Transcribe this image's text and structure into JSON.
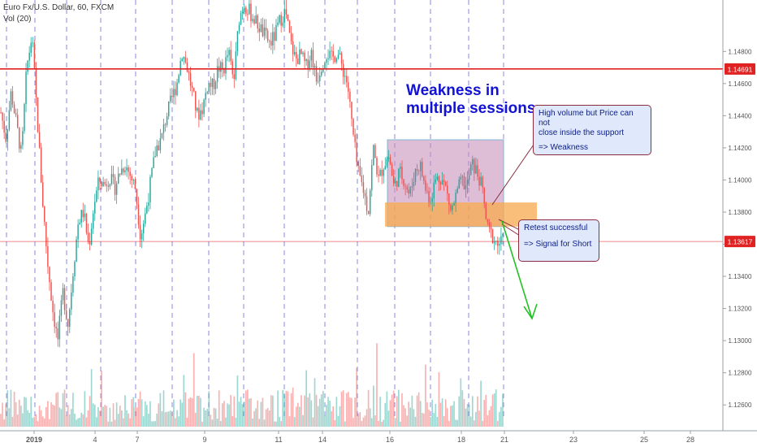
{
  "header": {
    "title": "Euro Fx/U.S. Dollar, 60, FXCM",
    "volume_label": "Vol (20)"
  },
  "chart_data": {
    "type": "candlestick",
    "symbol": "EURUSD",
    "interval": "60",
    "ylim": [
      1.1252,
      1.151
    ],
    "y_ticks": [
      "1.12600",
      "1.12800",
      "1.13000",
      "1.13200",
      "1.13400",
      "1.13600",
      "1.13800",
      "1.14000",
      "1.14200",
      "1.14400",
      "1.14600",
      "1.14800"
    ],
    "x_ticks": [
      "2019",
      "4",
      "7",
      "9",
      "11",
      "14",
      "16",
      "18",
      "21",
      "23",
      "25",
      "28"
    ],
    "price_markers": [
      {
        "label": "1.14691",
        "value": 1.14691,
        "color": "#e02222"
      },
      {
        "label": "1.13617",
        "value": 1.13617,
        "color": "#e02222"
      }
    ],
    "zones": [
      {
        "name": "weakness-range",
        "price_top": 1.1425,
        "price_bottom": 1.1371,
        "color": "#c389b6"
      },
      {
        "name": "support-zone",
        "price_top": 1.1386,
        "price_bottom": 1.1371,
        "color": "#f7a94e"
      }
    ],
    "price_path": [
      1.1442,
      1.1426,
      1.1455,
      1.1435,
      1.1415,
      1.147,
      1.149,
      1.144,
      1.139,
      1.135,
      1.132,
      1.13,
      1.133,
      1.131,
      1.1345,
      1.1375,
      1.138,
      1.1358,
      1.1385,
      1.14,
      1.1397,
      1.1402,
      1.1395,
      1.1405,
      1.141,
      1.1403,
      1.1395,
      1.1365,
      1.138,
      1.14,
      1.142,
      1.1425,
      1.144,
      1.145,
      1.146,
      1.148,
      1.147,
      1.1455,
      1.144,
      1.1445,
      1.146,
      1.1458,
      1.147,
      1.1468,
      1.148,
      1.146,
      1.15,
      1.151,
      1.1505,
      1.15,
      1.1495,
      1.149,
      1.1485,
      1.149,
      1.15,
      1.1505,
      1.1485,
      1.1475,
      1.1478,
      1.147,
      1.148,
      1.1462,
      1.1472,
      1.148,
      1.1475,
      1.148,
      1.147,
      1.146,
      1.143,
      1.1405,
      1.1395,
      1.138,
      1.142,
      1.14,
      1.141,
      1.1415,
      1.1395,
      1.1405,
      1.14,
      1.139,
      1.1405,
      1.141,
      1.1395,
      1.1388,
      1.14,
      1.1402,
      1.1395,
      1.138,
      1.139,
      1.14,
      1.1395,
      1.141,
      1.1405,
      1.1395,
      1.137,
      1.1365,
      1.136,
      1.1362
    ],
    "annotations": {
      "title_text": "Weakness in multiple sessions",
      "callout_1": [
        "High volume but Price can not close inside the support",
        "=> Weakness"
      ],
      "callout_2": [
        "Retest successful",
        "=> Signal for Short"
      ]
    }
  },
  "annotations": {
    "weakness_title": [
      "Weakness in",
      "multiple sessions"
    ],
    "callout_top": {
      "line1": "High volume but Price can not",
      "line2": "close inside the support",
      "line3": "=> Weakness"
    },
    "callout_bottom": {
      "line1": "Retest successful",
      "line2": "=> Signal for Short"
    }
  },
  "colors": {
    "up": "#26a69a",
    "down": "#ef5350",
    "line": "#e02222",
    "arrow": "#22c322",
    "session": "#3a3ad6"
  }
}
